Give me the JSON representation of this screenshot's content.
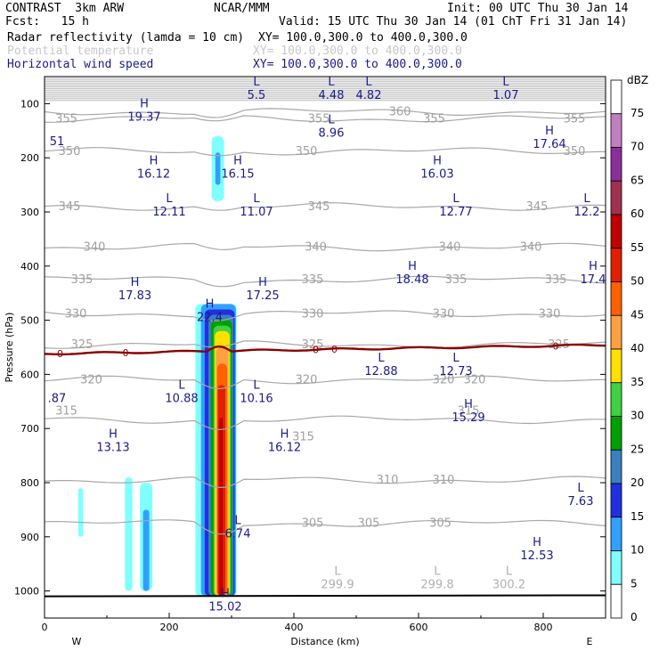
{
  "header": {
    "model": "CONTRAST  3km ARW",
    "org": "NCAR/MMM",
    "init": "Init: 00 UTC Thu 30 Jan 14",
    "fcst": "Fcst:   15 h",
    "valid": "Valid: 15 UTC Thu 30 Jan 14 (01 ChT Fri 31 Jan 14)",
    "fields": [
      {
        "name": "Radar reflectivity (lamda = 10 cm)",
        "xy": "XY= 100.0,300.0 to 400.0,300.0",
        "color": "#000000"
      },
      {
        "name": "Potential temperature",
        "xy": "XY= 100.0,300.0 to 400.0,300.0",
        "color": "#c8c8c8"
      },
      {
        "name": "Horizontal wind speed",
        "xy": "XY= 100.0,300.0 to 400.0,300.0",
        "color": "#1a1a8c"
      }
    ]
  },
  "chart_data": {
    "type": "cross-section",
    "xlabel": "Distance (km)",
    "ylabel": "Pressure (hPa)",
    "xlim": [
      0,
      900
    ],
    "ylim": [
      1050,
      50
    ],
    "x_ticks": [
      0,
      200,
      400,
      600,
      800
    ],
    "y_ticks": [
      100,
      200,
      300,
      400,
      500,
      600,
      700,
      800,
      900,
      1000
    ],
    "end_labels": {
      "left": "W",
      "right": "E"
    },
    "colorbar": {
      "units": "dBZ",
      "levels": [
        75,
        70,
        65,
        60,
        55,
        50,
        45,
        40,
        35,
        30,
        25,
        20,
        15,
        10,
        5,
        0
      ],
      "colors": [
        "#ffffff",
        "#c080c0",
        "#8a2f9a",
        "#a03050",
        "#c00000",
        "#e02000",
        "#ff6000",
        "#ffa040",
        "#ffe000",
        "#40d040",
        "#00a000",
        "#3880c0",
        "#2030e0",
        "#30a0ff",
        "#80ffff",
        "#ffffff"
      ]
    },
    "wind_extrema": [
      {
        "type": "H",
        "value": "19.37",
        "x": 160,
        "p": 110
      },
      {
        "type": "L",
        "value": "5.5",
        "x": 340,
        "p": 70
      },
      {
        "type": "L",
        "value": "4.48",
        "x": 460,
        "p": 70
      },
      {
        "type": "L",
        "value": "4.82",
        "x": 520,
        "p": 70
      },
      {
        "type": "L",
        "value": "1.07",
        "x": 740,
        "p": 70
      },
      {
        "type": "L",
        "value": "8.96",
        "x": 460,
        "p": 140
      },
      {
        "type": "H",
        "value": "17.64",
        "x": 810,
        "p": 160
      },
      {
        "type": "",
        "value": "51",
        "x": 20,
        "p": 155
      },
      {
        "type": "H",
        "value": "16.12",
        "x": 175,
        "p": 215
      },
      {
        "type": "H",
        "value": "16.15",
        "x": 310,
        "p": 215
      },
      {
        "type": "H",
        "value": "16.03",
        "x": 630,
        "p": 215
      },
      {
        "type": "L",
        "value": "12.11",
        "x": 200,
        "p": 285
      },
      {
        "type": "L",
        "value": "11.07",
        "x": 340,
        "p": 285
      },
      {
        "type": "L",
        "value": "12.77",
        "x": 660,
        "p": 285
      },
      {
        "type": "L",
        "value": "12.2",
        "x": 870,
        "p": 285
      },
      {
        "type": "H",
        "value": "18.48",
        "x": 590,
        "p": 410
      },
      {
        "type": "H",
        "value": "17.4",
        "x": 880,
        "p": 410
      },
      {
        "type": "H",
        "value": "17.83",
        "x": 145,
        "p": 440
      },
      {
        "type": "H",
        "value": "17.25",
        "x": 350,
        "p": 440
      },
      {
        "type": "H",
        "value": "22.4",
        "x": 265,
        "p": 480
      },
      {
        "type": "L",
        "value": "12.88",
        "x": 540,
        "p": 580
      },
      {
        "type": "L",
        "value": "12.73",
        "x": 660,
        "p": 580
      },
      {
        "type": "L",
        "value": "10.88",
        "x": 220,
        "p": 630
      },
      {
        "type": "L",
        "value": "10.16",
        "x": 340,
        "p": 630
      },
      {
        "type": "",
        "value": ".87",
        "x": 20,
        "p": 630
      },
      {
        "type": "H",
        "value": "15.29",
        "x": 680,
        "p": 665
      },
      {
        "type": "H",
        "value": "13.13",
        "x": 110,
        "p": 720
      },
      {
        "type": "H",
        "value": "16.12",
        "x": 385,
        "p": 720
      },
      {
        "type": "L",
        "value": "7.63",
        "x": 860,
        "p": 820
      },
      {
        "type": "L",
        "value": "6.74",
        "x": 310,
        "p": 880
      },
      {
        "type": "H",
        "value": "12.53",
        "x": 790,
        "p": 920
      },
      {
        "type": "H",
        "value": "15.02",
        "x": 290,
        "p": 1015
      }
    ],
    "theta_extrema": [
      {
        "type": "L",
        "value": "299.9",
        "x": 470,
        "p": 980
      },
      {
        "type": "L",
        "value": "299.8",
        "x": 630,
        "p": 980
      },
      {
        "type": "L",
        "value": "300.2",
        "x": 745,
        "p": 980
      }
    ],
    "theta_contours": [
      {
        "value": "360",
        "label_positions": [
          [
            570,
            115
          ]
        ]
      },
      {
        "value": "355",
        "label_positions": [
          [
            35,
            128
          ],
          [
            440,
            128
          ],
          [
            625,
            128
          ],
          [
            850,
            128
          ]
        ]
      },
      {
        "value": "350",
        "label_positions": [
          [
            40,
            188
          ],
          [
            420,
            188
          ],
          [
            850,
            188
          ]
        ]
      },
      {
        "value": "345",
        "label_positions": [
          [
            40,
            290
          ],
          [
            440,
            290
          ],
          [
            790,
            290
          ]
        ]
      },
      {
        "value": "340",
        "label_positions": [
          [
            80,
            365
          ],
          [
            435,
            365
          ],
          [
            650,
            365
          ],
          [
            780,
            365
          ]
        ]
      },
      {
        "value": "335",
        "label_positions": [
          [
            60,
            425
          ],
          [
            430,
            425
          ],
          [
            660,
            425
          ],
          [
            820,
            425
          ]
        ]
      },
      {
        "value": "330",
        "label_positions": [
          [
            50,
            488
          ],
          [
            430,
            488
          ],
          [
            640,
            488
          ],
          [
            810,
            488
          ]
        ]
      },
      {
        "value": "325",
        "label_positions": [
          [
            60,
            545
          ],
          [
            430,
            545
          ],
          [
            825,
            545
          ]
        ]
      },
      {
        "value": "320",
        "label_positions": [
          [
            75,
            610
          ],
          [
            420,
            610
          ],
          [
            640,
            610
          ],
          [
            690,
            610
          ]
        ]
      },
      {
        "value": "315",
        "label_positions": [
          [
            35,
            668
          ],
          [
            680,
            668
          ],
          [
            415,
            715
          ]
        ]
      },
      {
        "value": "310",
        "label_positions": [
          [
            550,
            795
          ],
          [
            640,
            795
          ]
        ]
      },
      {
        "value": "305",
        "label_positions": [
          [
            430,
            875
          ],
          [
            520,
            875
          ],
          [
            635,
            875
          ]
        ]
      }
    ],
    "zero_contour_label": "0",
    "zero_contour_positions": [
      25,
      130,
      435,
      465,
      820
    ]
  }
}
